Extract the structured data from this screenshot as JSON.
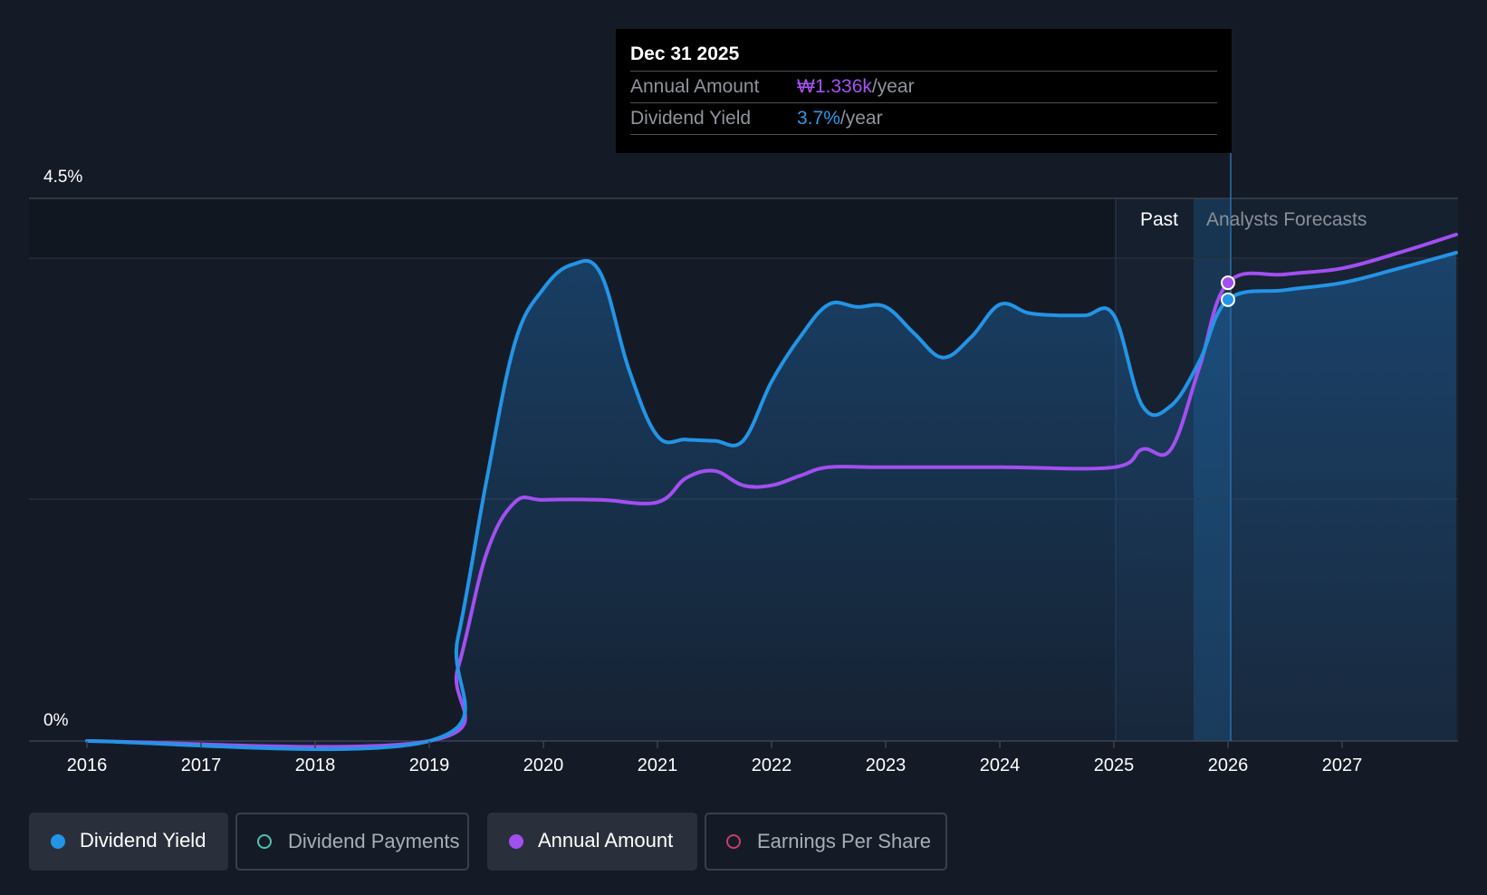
{
  "tooltip": {
    "date": "Dec 31 2025",
    "annual_amount_label": "Annual Amount",
    "annual_amount_value": "₩1.336k",
    "dividend_yield_label": "Dividend Yield",
    "dividend_yield_value": "3.7%",
    "per_year": "/year"
  },
  "legend": [
    {
      "label": "Dividend Yield",
      "color": "#2394e6",
      "active": true
    },
    {
      "label": "Dividend Payments",
      "color": "#4fc1b4",
      "active": false
    },
    {
      "label": "Annual Amount",
      "color": "#a24ff0",
      "active": true
    },
    {
      "label": "Earnings Per Share",
      "color": "#c2406e",
      "active": false
    }
  ],
  "chart_data": {
    "type": "area",
    "ylim": [
      0,
      4.5
    ],
    "y_tick_labels": [
      "0%",
      "4.5%"
    ],
    "x_tick_labels": [
      "2016",
      "2017",
      "2018",
      "2019",
      "2020",
      "2021",
      "2022",
      "2023",
      "2024",
      "2025",
      "2026",
      "2027"
    ],
    "xlim": [
      2016,
      2028.2
    ],
    "region_labels": {
      "past": "Past",
      "forecast": "Analysts Forecasts"
    },
    "series": [
      {
        "name": "Dividend Yield",
        "color": "#2394e6",
        "points": [
          [
            2016.0,
            0
          ],
          [
            2019.0,
            0
          ],
          [
            2019.25,
            0.85
          ],
          [
            2019.5,
            2.15
          ],
          [
            2019.75,
            3.3
          ],
          [
            2020.0,
            3.75
          ],
          [
            2020.25,
            3.95
          ],
          [
            2020.5,
            3.88
          ],
          [
            2020.75,
            3.08
          ],
          [
            2021.0,
            2.53
          ],
          [
            2021.25,
            2.5
          ],
          [
            2021.5,
            2.49
          ],
          [
            2021.75,
            2.49
          ],
          [
            2022.0,
            2.98
          ],
          [
            2022.25,
            3.35
          ],
          [
            2022.5,
            3.62
          ],
          [
            2022.75,
            3.6
          ],
          [
            2023.0,
            3.6
          ],
          [
            2023.25,
            3.38
          ],
          [
            2023.5,
            3.18
          ],
          [
            2023.75,
            3.35
          ],
          [
            2024.0,
            3.62
          ],
          [
            2024.25,
            3.55
          ],
          [
            2024.5,
            3.53
          ],
          [
            2024.75,
            3.53
          ],
          [
            2025.0,
            3.53
          ],
          [
            2025.25,
            2.78
          ],
          [
            2025.5,
            2.78
          ],
          [
            2025.75,
            3.15
          ],
          [
            2026.0,
            3.66
          ],
          [
            2026.5,
            3.74
          ],
          [
            2027.0,
            3.8
          ],
          [
            2027.5,
            3.92
          ],
          [
            2028.0,
            4.05
          ]
        ]
      },
      {
        "name": "Annual Amount",
        "color": "#a24ff0",
        "points": [
          [
            2016.0,
            0
          ],
          [
            2019.0,
            0
          ],
          [
            2019.25,
            0.6
          ],
          [
            2019.5,
            1.55
          ],
          [
            2019.75,
            1.98
          ],
          [
            2020.0,
            2.0
          ],
          [
            2020.5,
            2.0
          ],
          [
            2021.0,
            1.98
          ],
          [
            2021.25,
            2.18
          ],
          [
            2021.5,
            2.24
          ],
          [
            2021.75,
            2.12
          ],
          [
            2022.0,
            2.12
          ],
          [
            2022.25,
            2.2
          ],
          [
            2022.5,
            2.27
          ],
          [
            2023.0,
            2.27
          ],
          [
            2024.0,
            2.27
          ],
          [
            2025.0,
            2.27
          ],
          [
            2025.25,
            2.42
          ],
          [
            2025.5,
            2.42
          ],
          [
            2025.75,
            3.1
          ],
          [
            2026.0,
            3.8
          ],
          [
            2026.5,
            3.87
          ],
          [
            2027.0,
            3.92
          ],
          [
            2027.5,
            4.05
          ],
          [
            2028.0,
            4.2
          ]
        ]
      }
    ]
  }
}
